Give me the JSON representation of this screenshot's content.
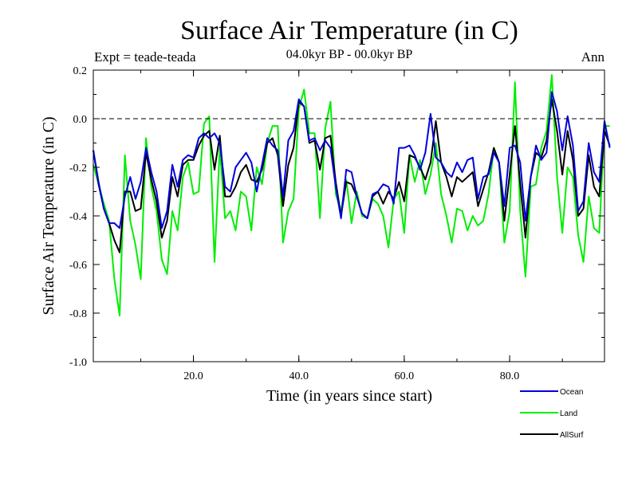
{
  "chart_data": {
    "type": "line",
    "title": "Surface Air Temperature (in C)",
    "subtitle": "04.0kyr BP - 00.0kyr BP",
    "left_label": "Expt = teade-teada",
    "right_label": "Ann",
    "xlabel": "Time (in years since start)",
    "ylabel": "Surface Air Temperature (in C)",
    "xlim": [
      1,
      98
    ],
    "ylim": [
      -1.0,
      0.2
    ],
    "xticks": [
      {
        "value": 20,
        "label": "20.0"
      },
      {
        "value": 40,
        "label": "40.0"
      },
      {
        "value": 60,
        "label": "60.0"
      },
      {
        "value": 80,
        "label": "80.0"
      }
    ],
    "yticks": [
      {
        "value": 0.2,
        "label": "0.2"
      },
      {
        "value": 0.0,
        "label": "0.0"
      },
      {
        "value": -0.2,
        "label": "-0.2"
      },
      {
        "value": -0.4,
        "label": "-0.4"
      },
      {
        "value": -0.6,
        "label": "-0.6"
      },
      {
        "value": -0.8,
        "label": "-0.8"
      },
      {
        "value": -1.0,
        "label": "-1.0"
      }
    ],
    "reference_line": 0.0,
    "series": [
      {
        "name": "Land",
        "color": "#00ee00",
        "values": [
          -0.19,
          -0.27,
          -0.35,
          -0.42,
          -0.66,
          -0.81,
          -0.15,
          -0.42,
          -0.52,
          -0.66,
          -0.08,
          -0.28,
          -0.38,
          -0.58,
          -0.64,
          -0.38,
          -0.46,
          -0.24,
          -0.18,
          -0.31,
          -0.3,
          -0.02,
          0.01,
          -0.59,
          -0.12,
          -0.41,
          -0.38,
          -0.46,
          -0.3,
          -0.32,
          -0.46,
          -0.2,
          -0.27,
          -0.1,
          -0.03,
          -0.03,
          -0.51,
          -0.38,
          -0.33,
          0.04,
          0.12,
          -0.06,
          -0.06,
          -0.41,
          -0.04,
          0.07,
          -0.31,
          -0.38,
          -0.25,
          -0.43,
          -0.3,
          -0.4,
          -0.41,
          -0.33,
          -0.35,
          -0.4,
          -0.53,
          -0.33,
          -0.3,
          -0.47,
          -0.15,
          -0.26,
          -0.17,
          -0.31,
          -0.23,
          -0.1,
          -0.31,
          -0.4,
          -0.51,
          -0.37,
          -0.38,
          -0.46,
          -0.4,
          -0.44,
          -0.42,
          -0.31,
          -0.12,
          -0.18,
          -0.51,
          -0.38,
          0.15,
          -0.38,
          -0.65,
          -0.28,
          -0.27,
          -0.12,
          -0.05,
          0.18,
          -0.24,
          -0.47,
          -0.2,
          -0.24,
          -0.48,
          -0.59,
          -0.32,
          -0.45,
          -0.47,
          -0.03,
          -0.03
        ]
      },
      {
        "name": "AllSurf",
        "color": "#000000",
        "values": [
          -0.13,
          -0.27,
          -0.37,
          -0.43,
          -0.5,
          -0.55,
          -0.3,
          -0.3,
          -0.38,
          -0.37,
          -0.14,
          -0.25,
          -0.34,
          -0.49,
          -0.42,
          -0.24,
          -0.32,
          -0.19,
          -0.17,
          -0.17,
          -0.11,
          -0.07,
          -0.05,
          -0.21,
          -0.07,
          -0.32,
          -0.32,
          -0.28,
          -0.22,
          -0.19,
          -0.25,
          -0.26,
          -0.21,
          -0.1,
          -0.08,
          -0.15,
          -0.36,
          -0.19,
          -0.12,
          0.07,
          0.05,
          -0.1,
          -0.09,
          -0.21,
          -0.08,
          -0.07,
          -0.26,
          -0.4,
          -0.26,
          -0.27,
          -0.32,
          -0.39,
          -0.41,
          -0.32,
          -0.3,
          -0.35,
          -0.3,
          -0.33,
          -0.26,
          -0.34,
          -0.15,
          -0.16,
          -0.2,
          -0.25,
          -0.18,
          -0.01,
          -0.18,
          -0.24,
          -0.32,
          -0.24,
          -0.26,
          -0.24,
          -0.22,
          -0.36,
          -0.29,
          -0.22,
          -0.12,
          -0.18,
          -0.42,
          -0.23,
          -0.03,
          -0.27,
          -0.49,
          -0.24,
          -0.14,
          -0.16,
          -0.09,
          0.08,
          -0.05,
          -0.23,
          -0.05,
          -0.17,
          -0.4,
          -0.37,
          -0.15,
          -0.28,
          -0.32,
          -0.05,
          -0.11
        ]
      },
      {
        "name": "Ocean",
        "color": "#0000dd",
        "values": [
          -0.13,
          -0.26,
          -0.37,
          -0.43,
          -0.43,
          -0.45,
          -0.32,
          -0.24,
          -0.33,
          -0.26,
          -0.12,
          -0.22,
          -0.3,
          -0.45,
          -0.38,
          -0.19,
          -0.28,
          -0.17,
          -0.15,
          -0.16,
          -0.08,
          -0.06,
          -0.08,
          -0.06,
          -0.1,
          -0.28,
          -0.3,
          -0.2,
          -0.17,
          -0.14,
          -0.18,
          -0.3,
          -0.19,
          -0.08,
          -0.11,
          -0.13,
          -0.32,
          -0.09,
          -0.05,
          0.08,
          0.05,
          -0.09,
          -0.08,
          -0.13,
          -0.09,
          -0.12,
          -0.28,
          -0.41,
          -0.21,
          -0.22,
          -0.32,
          -0.39,
          -0.41,
          -0.31,
          -0.3,
          -0.27,
          -0.28,
          -0.35,
          -0.12,
          -0.12,
          -0.11,
          -0.15,
          -0.21,
          -0.14,
          0.02,
          -0.16,
          -0.18,
          -0.22,
          -0.24,
          -0.18,
          -0.22,
          -0.17,
          -0.16,
          -0.33,
          -0.24,
          -0.23,
          -0.14,
          -0.18,
          -0.36,
          -0.12,
          -0.11,
          -0.18,
          -0.42,
          -0.24,
          -0.11,
          -0.17,
          -0.14,
          0.11,
          0.03,
          -0.13,
          0.01,
          -0.11,
          -0.38,
          -0.34,
          -0.1,
          -0.22,
          -0.26,
          -0.01,
          -0.12
        ]
      }
    ],
    "legend": [
      {
        "name": "Ocean",
        "color": "#0000dd"
      },
      {
        "name": "Land",
        "color": "#00ee00"
      },
      {
        "name": "AllSurf",
        "color": "#000000"
      }
    ]
  }
}
